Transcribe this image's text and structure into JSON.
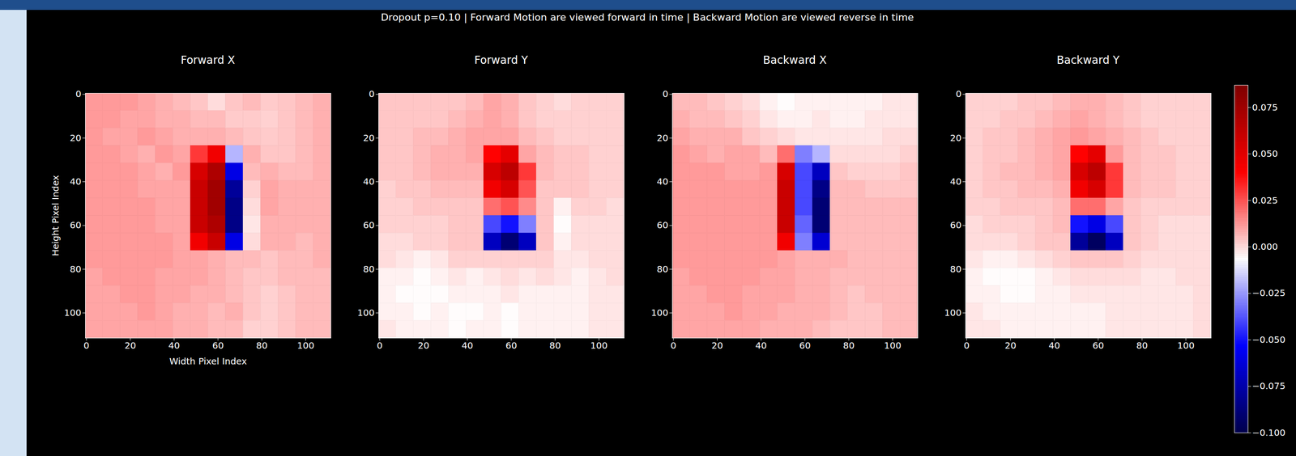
{
  "chart_data": {
    "type": "heatmap",
    "title": "Dropout p=0.10 | Forward Motion are viewed forward in time | Backward Motion are viewed reverse in time",
    "x_bins": [
      -0.5,
      7.5,
      15.5,
      23.5,
      31.5,
      39.5,
      47.5,
      55.5,
      63.5,
      71.5,
      79.5,
      87.5,
      95.5,
      103.5,
      111.5
    ],
    "y_bins": [
      -0.5,
      7.5,
      15.5,
      23.5,
      31.5,
      39.5,
      47.5,
      55.5,
      63.5,
      71.5,
      79.5,
      87.5,
      95.5,
      103.5,
      111.5
    ],
    "xlim": [
      -0.5,
      111.5
    ],
    "ylim": [
      111.5,
      -0.5
    ],
    "xticks": [
      0,
      20,
      40,
      60,
      80,
      100
    ],
    "yticks": [
      0,
      20,
      40,
      60,
      80,
      100
    ],
    "colorbar": {
      "lim": [
        -0.1,
        0.087
      ],
      "ticks": [
        {
          "value": 0.075,
          "label": "0.075"
        },
        {
          "value": 0.05,
          "label": "0.050"
        },
        {
          "value": 0.025,
          "label": "0.025"
        },
        {
          "value": 0,
          "label": "0.000"
        },
        {
          "value": -0.025,
          "label": "−0.025"
        },
        {
          "value": -0.05,
          "label": "−0.050"
        },
        {
          "value": -0.075,
          "label": "−0.075"
        },
        {
          "value": -0.1,
          "label": "−0.100"
        }
      ]
    },
    "panels": [
      {
        "title": "Forward X",
        "xlabel": "Width Pixel Index",
        "ylabel": "Height Pixel Index",
        "cells": [
          [
            0.012,
            0.012,
            0.012,
            0.01,
            0.008,
            0.006,
            0.004,
            0.0,
            0.004,
            0.006,
            0.003,
            0.004,
            0.006,
            0.008
          ],
          [
            0.012,
            0.012,
            0.01,
            0.01,
            0.008,
            0.008,
            0.006,
            0.006,
            0.003,
            0.003,
            0.002,
            0.004,
            0.006,
            0.008
          ],
          [
            0.012,
            0.01,
            0.01,
            0.012,
            0.01,
            0.008,
            0.008,
            0.008,
            0.006,
            0.004,
            0.003,
            0.004,
            0.006,
            0.008
          ],
          [
            0.012,
            0.012,
            0.01,
            0.008,
            0.012,
            0.01,
            0.03,
            0.045,
            -0.02,
            0.008,
            0.004,
            0.004,
            0.006,
            0.008
          ],
          [
            0.012,
            0.012,
            0.012,
            0.01,
            0.008,
            0.012,
            0.055,
            0.07,
            -0.06,
            0.006,
            0.008,
            0.006,
            0.006,
            0.008
          ],
          [
            0.012,
            0.012,
            0.012,
            0.01,
            0.01,
            0.01,
            0.06,
            0.075,
            -0.08,
            0.002,
            0.01,
            0.008,
            0.008,
            0.008
          ],
          [
            0.012,
            0.012,
            0.012,
            0.012,
            0.01,
            0.01,
            0.06,
            0.075,
            -0.085,
            0.0,
            0.01,
            0.008,
            0.008,
            0.008
          ],
          [
            0.012,
            0.012,
            0.012,
            0.012,
            0.01,
            0.01,
            0.06,
            0.07,
            -0.085,
            -0.002,
            0.008,
            0.008,
            0.008,
            0.008
          ],
          [
            0.012,
            0.012,
            0.012,
            0.012,
            0.012,
            0.01,
            0.045,
            0.06,
            -0.06,
            0.0,
            0.008,
            0.008,
            0.006,
            0.008
          ],
          [
            0.012,
            0.012,
            0.012,
            0.012,
            0.012,
            0.01,
            0.01,
            0.008,
            0.006,
            0.006,
            0.004,
            0.006,
            0.006,
            0.008
          ],
          [
            0.01,
            0.012,
            0.012,
            0.012,
            0.01,
            0.01,
            0.01,
            0.008,
            0.006,
            0.004,
            0.004,
            0.006,
            0.006,
            0.006
          ],
          [
            0.01,
            0.01,
            0.012,
            0.012,
            0.01,
            0.01,
            0.008,
            0.008,
            0.006,
            0.004,
            0.002,
            0.004,
            0.006,
            0.006
          ],
          [
            0.01,
            0.01,
            0.01,
            0.012,
            0.01,
            0.008,
            0.008,
            0.006,
            0.008,
            0.004,
            0.002,
            0.004,
            0.006,
            0.006
          ],
          [
            0.01,
            0.01,
            0.01,
            0.01,
            0.01,
            0.008,
            0.008,
            0.006,
            0.006,
            0.002,
            0.002,
            0.004,
            0.006,
            0.006
          ]
        ]
      },
      {
        "title": "Forward Y",
        "cells": [
          [
            0.004,
            0.004,
            0.004,
            0.004,
            0.004,
            0.006,
            0.01,
            0.008,
            0.004,
            0.002,
            0.0,
            0.002,
            0.002,
            0.002
          ],
          [
            0.004,
            0.004,
            0.004,
            0.004,
            0.006,
            0.008,
            0.01,
            0.008,
            0.004,
            0.002,
            0.002,
            0.002,
            0.002,
            0.002
          ],
          [
            0.004,
            0.004,
            0.006,
            0.006,
            0.008,
            0.01,
            0.01,
            0.01,
            0.006,
            0.004,
            0.002,
            0.002,
            0.002,
            0.002
          ],
          [
            0.004,
            0.004,
            0.006,
            0.008,
            0.008,
            0.01,
            0.04,
            0.05,
            0.01,
            0.006,
            0.004,
            0.004,
            0.002,
            0.002
          ],
          [
            0.004,
            0.004,
            0.006,
            0.008,
            0.008,
            0.008,
            0.055,
            0.065,
            0.03,
            0.006,
            0.004,
            0.004,
            0.002,
            0.002
          ],
          [
            0.002,
            0.004,
            0.004,
            0.006,
            0.006,
            0.006,
            0.045,
            0.055,
            0.025,
            0.004,
            0.004,
            0.004,
            0.002,
            0.002
          ],
          [
            0.002,
            0.002,
            0.004,
            0.004,
            0.004,
            0.004,
            0.02,
            0.025,
            0.015,
            0.004,
            -0.004,
            0.002,
            0.002,
            0.0
          ],
          [
            0.002,
            0.002,
            0.002,
            0.002,
            0.004,
            0.004,
            -0.04,
            -0.05,
            -0.03,
            0.004,
            -0.006,
            0.0,
            0.0,
            0.0
          ],
          [
            0.0,
            0.0,
            0.002,
            0.002,
            0.004,
            0.004,
            -0.07,
            -0.09,
            -0.07,
            0.004,
            -0.004,
            0.0,
            0.0,
            0.0
          ],
          [
            0.0,
            -0.002,
            -0.004,
            -0.002,
            0.002,
            0.002,
            0.002,
            0.002,
            0.002,
            0.002,
            -0.002,
            -0.002,
            0.0,
            0.0
          ],
          [
            -0.004,
            -0.004,
            -0.006,
            -0.004,
            -0.002,
            -0.004,
            -0.002,
            0.0,
            -0.002,
            0.0,
            -0.002,
            -0.004,
            -0.002,
            0.0
          ],
          [
            -0.004,
            -0.006,
            -0.006,
            -0.006,
            -0.004,
            -0.004,
            -0.004,
            -0.002,
            -0.004,
            -0.004,
            -0.004,
            -0.004,
            -0.002,
            -0.002
          ],
          [
            -0.004,
            -0.004,
            -0.006,
            -0.004,
            -0.006,
            -0.006,
            -0.004,
            -0.006,
            -0.004,
            -0.004,
            -0.004,
            -0.004,
            -0.002,
            -0.002
          ],
          [
            -0.002,
            -0.004,
            -0.004,
            -0.004,
            -0.006,
            -0.004,
            -0.004,
            -0.006,
            -0.004,
            -0.004,
            -0.004,
            -0.004,
            -0.002,
            -0.002
          ]
        ]
      },
      {
        "title": "Backward X",
        "cells": [
          [
            0.006,
            0.006,
            0.004,
            0.002,
            0.0,
            -0.004,
            -0.006,
            -0.004,
            -0.004,
            -0.004,
            -0.004,
            -0.004,
            -0.002,
            -0.002
          ],
          [
            0.008,
            0.006,
            0.006,
            0.004,
            0.002,
            -0.002,
            -0.004,
            -0.004,
            -0.002,
            -0.004,
            -0.004,
            -0.002,
            -0.002,
            -0.002
          ],
          [
            0.01,
            0.008,
            0.008,
            0.008,
            0.004,
            0.002,
            0.0,
            -0.002,
            -0.002,
            -0.002,
            -0.002,
            -0.002,
            0.0,
            0.0
          ],
          [
            0.012,
            0.01,
            0.008,
            0.01,
            0.01,
            0.006,
            0.02,
            -0.03,
            -0.02,
            0.0,
            0.0,
            0.0,
            0.0,
            0.002
          ],
          [
            0.012,
            0.012,
            0.012,
            0.01,
            0.01,
            0.012,
            0.055,
            -0.04,
            -0.07,
            0.004,
            0.002,
            0.002,
            0.002,
            0.004
          ],
          [
            0.012,
            0.012,
            0.012,
            0.012,
            0.012,
            0.012,
            0.06,
            -0.04,
            -0.085,
            0.006,
            0.006,
            0.004,
            0.004,
            0.004
          ],
          [
            0.012,
            0.012,
            0.012,
            0.012,
            0.012,
            0.012,
            0.06,
            -0.04,
            -0.09,
            0.006,
            0.006,
            0.006,
            0.006,
            0.006
          ],
          [
            0.012,
            0.012,
            0.012,
            0.012,
            0.012,
            0.012,
            0.06,
            -0.035,
            -0.09,
            0.006,
            0.006,
            0.006,
            0.006,
            0.006
          ],
          [
            0.012,
            0.012,
            0.012,
            0.012,
            0.012,
            0.012,
            0.045,
            -0.03,
            -0.065,
            0.006,
            0.006,
            0.006,
            0.006,
            0.006
          ],
          [
            0.012,
            0.012,
            0.012,
            0.012,
            0.012,
            0.012,
            0.01,
            0.008,
            0.008,
            0.008,
            0.006,
            0.006,
            0.006,
            0.006
          ],
          [
            0.01,
            0.012,
            0.012,
            0.012,
            0.012,
            0.01,
            0.01,
            0.008,
            0.008,
            0.006,
            0.006,
            0.006,
            0.006,
            0.006
          ],
          [
            0.01,
            0.01,
            0.012,
            0.012,
            0.01,
            0.01,
            0.01,
            0.008,
            0.008,
            0.006,
            0.004,
            0.006,
            0.006,
            0.006
          ],
          [
            0.01,
            0.01,
            0.01,
            0.012,
            0.01,
            0.01,
            0.008,
            0.008,
            0.008,
            0.006,
            0.004,
            0.004,
            0.006,
            0.006
          ],
          [
            0.01,
            0.01,
            0.01,
            0.01,
            0.01,
            0.008,
            0.008,
            0.008,
            0.006,
            0.004,
            0.004,
            0.004,
            0.006,
            0.006
          ]
        ]
      },
      {
        "title": "Backward Y",
        "cells": [
          [
            0.002,
            0.002,
            0.002,
            0.004,
            0.004,
            0.006,
            0.008,
            0.008,
            0.006,
            0.004,
            0.002,
            0.002,
            0.002,
            0.002
          ],
          [
            0.002,
            0.002,
            0.004,
            0.004,
            0.006,
            0.008,
            0.01,
            0.008,
            0.006,
            0.004,
            0.002,
            0.002,
            0.002,
            0.002
          ],
          [
            0.002,
            0.004,
            0.004,
            0.006,
            0.008,
            0.01,
            0.012,
            0.01,
            0.008,
            0.006,
            0.004,
            0.002,
            0.002,
            0.002
          ],
          [
            0.002,
            0.004,
            0.004,
            0.006,
            0.008,
            0.01,
            0.04,
            0.05,
            0.012,
            0.006,
            0.004,
            0.004,
            0.002,
            0.002
          ],
          [
            0.002,
            0.004,
            0.006,
            0.006,
            0.008,
            0.01,
            0.055,
            0.065,
            0.03,
            0.006,
            0.004,
            0.004,
            0.002,
            0.002
          ],
          [
            0.002,
            0.004,
            0.004,
            0.006,
            0.006,
            0.008,
            0.045,
            0.055,
            0.03,
            0.006,
            0.004,
            0.004,
            0.002,
            0.002
          ],
          [
            0.002,
            0.002,
            0.004,
            0.004,
            0.004,
            0.006,
            0.02,
            0.02,
            0.01,
            0.004,
            0.002,
            0.002,
            0.002,
            0.002
          ],
          [
            0.0,
            0.002,
            0.002,
            0.002,
            0.004,
            0.006,
            -0.05,
            -0.06,
            -0.04,
            0.004,
            0.002,
            0.0,
            0.0,
            0.0
          ],
          [
            0.0,
            0.0,
            0.0,
            0.002,
            0.004,
            0.004,
            -0.08,
            -0.095,
            -0.07,
            0.004,
            0.002,
            0.0,
            0.0,
            0.0
          ],
          [
            -0.002,
            -0.004,
            -0.004,
            -0.002,
            0.0,
            0.002,
            0.004,
            0.004,
            0.004,
            0.002,
            0.0,
            0.0,
            0.0,
            0.0
          ],
          [
            -0.004,
            -0.006,
            -0.006,
            -0.006,
            -0.004,
            -0.002,
            0.0,
            0.0,
            0.0,
            0.0,
            -0.002,
            -0.002,
            0.0,
            0.0
          ],
          [
            -0.004,
            -0.004,
            -0.006,
            -0.006,
            -0.004,
            -0.004,
            -0.002,
            -0.002,
            -0.002,
            -0.002,
            -0.002,
            -0.002,
            -0.002,
            0.0
          ],
          [
            -0.002,
            -0.004,
            -0.004,
            -0.004,
            -0.004,
            -0.004,
            -0.004,
            -0.004,
            -0.002,
            -0.002,
            -0.002,
            -0.002,
            -0.002,
            0.0
          ],
          [
            -0.002,
            -0.002,
            -0.004,
            -0.004,
            -0.004,
            -0.004,
            -0.004,
            -0.004,
            -0.002,
            -0.002,
            -0.002,
            -0.002,
            -0.002,
            0.0
          ]
        ]
      }
    ]
  }
}
